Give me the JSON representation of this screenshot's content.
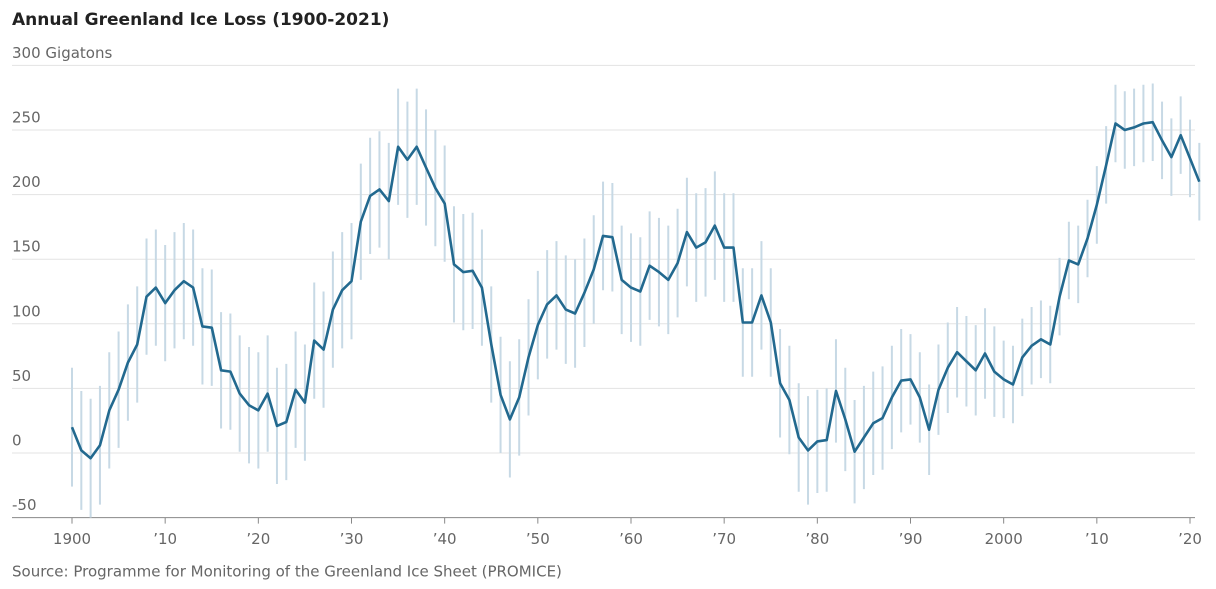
{
  "chart_data": {
    "type": "line",
    "title": "Annual Greenland Ice Loss (1900-2021)",
    "source": "Source: Programme for Monitoring of the Greenland Ice Sheet (PROMICE)",
    "x": [
      1900,
      1901,
      1902,
      1903,
      1904,
      1905,
      1906,
      1907,
      1908,
      1909,
      1910,
      1911,
      1912,
      1913,
      1914,
      1915,
      1916,
      1917,
      1918,
      1919,
      1920,
      1921,
      1922,
      1923,
      1924,
      1925,
      1926,
      1927,
      1928,
      1929,
      1930,
      1931,
      1932,
      1933,
      1934,
      1935,
      1936,
      1937,
      1938,
      1939,
      1940,
      1941,
      1942,
      1943,
      1944,
      1945,
      1946,
      1947,
      1948,
      1949,
      1950,
      1951,
      1952,
      1953,
      1954,
      1955,
      1956,
      1957,
      1958,
      1959,
      1960,
      1961,
      1962,
      1963,
      1964,
      1965,
      1966,
      1967,
      1968,
      1969,
      1970,
      1971,
      1972,
      1973,
      1974,
      1975,
      1976,
      1977,
      1978,
      1979,
      1980,
      1981,
      1982,
      1983,
      1984,
      1985,
      1986,
      1987,
      1988,
      1989,
      1990,
      1991,
      1992,
      1993,
      1994,
      1995,
      1996,
      1997,
      1998,
      1999,
      2000,
      2001,
      2002,
      2003,
      2004,
      2005,
      2006,
      2007,
      2008,
      2009,
      2010,
      2011,
      2012,
      2013,
      2014,
      2015,
      2016,
      2017,
      2018,
      2019,
      2020,
      2021
    ],
    "series": [
      {
        "name": "Annual ice loss",
        "color": "#22698f",
        "error_color": "#c7d9e5",
        "values": [
          20,
          2,
          -4,
          6,
          33,
          49,
          70,
          84,
          121,
          128,
          116,
          126,
          133,
          128,
          98,
          97,
          64,
          63,
          46,
          37,
          33,
          46,
          21,
          24,
          49,
          39,
          87,
          80,
          111,
          126,
          133,
          179,
          199,
          204,
          195,
          237,
          227,
          237,
          221,
          205,
          193,
          146,
          140,
          141,
          128,
          84,
          45,
          26,
          43,
          74,
          99,
          115,
          122,
          111,
          108,
          124,
          142,
          168,
          167,
          134,
          128,
          125,
          145,
          140,
          134,
          147,
          171,
          159,
          163,
          176,
          159,
          159,
          101,
          101,
          122,
          101,
          54,
          41,
          12,
          2,
          9,
          10,
          48,
          26,
          1,
          12,
          23,
          27,
          43,
          56,
          57,
          43,
          18,
          49,
          66,
          78,
          71,
          64,
          77,
          63,
          57,
          53,
          74,
          83,
          88,
          84,
          121,
          149,
          146,
          166,
          192,
          223,
          255,
          250,
          252,
          255,
          256,
          242,
          229,
          246,
          228,
          210
        ],
        "errors": [
          46,
          46,
          46,
          46,
          45,
          45,
          45,
          45,
          45,
          45,
          45,
          45,
          45,
          45,
          45,
          45,
          45,
          45,
          45,
          45,
          45,
          45,
          45,
          45,
          45,
          45,
          45,
          45,
          45,
          45,
          45,
          45,
          45,
          45,
          45,
          45,
          45,
          45,
          45,
          45,
          45,
          45,
          45,
          45,
          45,
          45,
          45,
          45,
          45,
          45,
          42,
          42,
          42,
          42,
          42,
          42,
          42,
          42,
          42,
          42,
          42,
          42,
          42,
          42,
          42,
          42,
          42,
          42,
          42,
          42,
          42,
          42,
          42,
          42,
          42,
          42,
          42,
          42,
          42,
          42,
          40,
          40,
          40,
          40,
          40,
          40,
          40,
          40,
          40,
          40,
          35,
          35,
          35,
          35,
          35,
          35,
          35,
          35,
          35,
          35,
          30,
          30,
          30,
          30,
          30,
          30,
          30,
          30,
          30,
          30,
          30,
          30,
          30,
          30,
          30,
          30,
          30,
          30,
          30,
          30,
          30,
          30
        ]
      }
    ],
    "xlim": [
      1900,
      2020
    ],
    "xticks": [
      1900,
      {
        "value": 1910,
        "label": "’10"
      },
      {
        "value": 1920,
        "label": "’20"
      },
      {
        "value": 1930,
        "label": "’30"
      },
      {
        "value": 1940,
        "label": "’40"
      },
      {
        "value": 1950,
        "label": "’50"
      },
      {
        "value": 1960,
        "label": "’60"
      },
      {
        "value": 1970,
        "label": "’70"
      },
      {
        "value": 1980,
        "label": "’80"
      },
      {
        "value": 1990,
        "label": "’90"
      },
      2000,
      {
        "value": 2010,
        "label": "’10"
      },
      {
        "value": 2020,
        "label": "’20"
      }
    ],
    "ylim": [
      -50,
      300
    ],
    "yticks": [
      -50,
      0,
      50,
      100,
      150,
      200,
      250,
      {
        "value": 300,
        "label": "300 Gigatons"
      }
    ],
    "grid": true
  }
}
